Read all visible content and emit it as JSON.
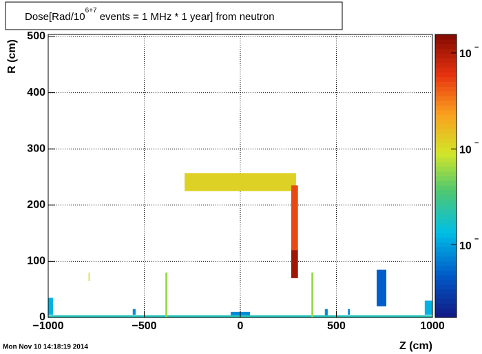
{
  "chart_data": {
    "type": "heatmap",
    "title": {
      "prefix": "Dose[Rad/10",
      "superscript": "6+7",
      "suffix": " events = 1 MHz * 1 year] from neutron"
    },
    "x_label": "Z (cm)",
    "y_label": "R (cm)",
    "timestamp": "Mon Nov 10 14:18:19 2014",
    "xlim": [
      -1000,
      1000
    ],
    "xticks": [
      {
        "value": -1000,
        "label": "−1000"
      },
      {
        "value": -500,
        "label": "−500"
      },
      0,
      500,
      1000
    ],
    "ylim": [
      0,
      500
    ],
    "yticks": [
      0,
      100,
      200,
      300,
      400,
      500
    ],
    "grid": true,
    "zlog": true,
    "zlim": [
      0.000175,
      0.156
    ],
    "zticks": [
      {
        "value": 0.1,
        "label": "10",
        "exponent": "−"
      },
      {
        "value": 0.01,
        "label": "10",
        "exponent": "−"
      },
      {
        "value": 0.001,
        "label": "10",
        "exponent": "−"
      }
    ],
    "cells": [
      {
        "z": [
          -1000,
          1000
        ],
        "r": [
          0,
          4
        ],
        "value": 0.002
      },
      {
        "z": [
          -290,
          290
        ],
        "r": [
          225,
          257
        ],
        "value": 0.012
      },
      {
        "z": [
          265,
          300
        ],
        "r": [
          120,
          235
        ],
        "value": 0.05
      },
      {
        "z": [
          265,
          300
        ],
        "r": [
          70,
          120
        ],
        "value": 0.12
      },
      {
        "z": [
          710,
          760
        ],
        "r": [
          20,
          85
        ],
        "value": 0.0005
      },
      {
        "z": [
          -1000,
          -975
        ],
        "r": [
          5,
          35
        ],
        "value": 0.0012
      },
      {
        "z": [
          960,
          1000
        ],
        "r": [
          5,
          30
        ],
        "value": 0.0012
      },
      {
        "z": [
          -560,
          -545
        ],
        "r": [
          5,
          15
        ],
        "value": 0.0008
      },
      {
        "z": [
          -390,
          -380
        ],
        "r": [
          0,
          80
        ],
        "value": 0.006
      },
      {
        "z": [
          370,
          380
        ],
        "r": [
          0,
          80
        ],
        "value": 0.006
      },
      {
        "z": [
          -790,
          -784
        ],
        "r": [
          65,
          80
        ],
        "value": 0.01
      },
      {
        "z": [
          -50,
          50
        ],
        "r": [
          4,
          10
        ],
        "value": 0.0008
      },
      {
        "z": [
          440,
          455
        ],
        "r": [
          4,
          15
        ],
        "value": 0.0008
      },
      {
        "z": [
          560,
          570
        ],
        "r": [
          5,
          15
        ],
        "value": 0.0008
      }
    ]
  }
}
